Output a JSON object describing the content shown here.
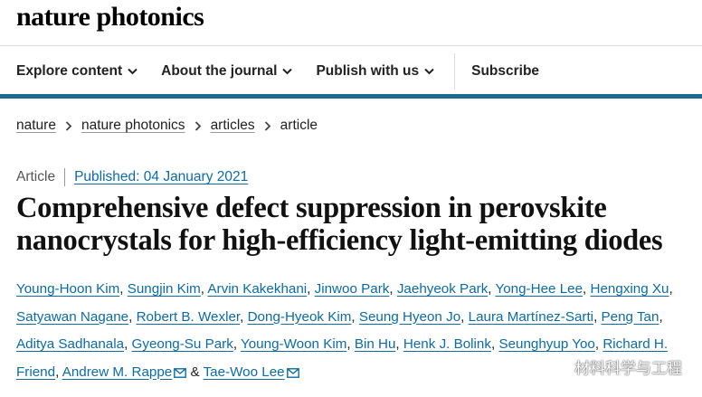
{
  "header": {
    "logo": "nature photonics",
    "nav": [
      "Explore content",
      "About the journal",
      "Publish with us"
    ],
    "subscribe": "Subscribe"
  },
  "breadcrumbs": [
    "nature",
    "nature photonics",
    "articles",
    "article"
  ],
  "article": {
    "type": "Article",
    "published": "Published: 04 January 2021",
    "title": "Comprehensive defect suppression in perovskite nanocrystals for high-efficiency light-emitting diodes",
    "authors": [
      "Young-Hoon Kim",
      "Sungjin Kim",
      "Arvin Kakekhani",
      "Jinwoo Park",
      "Jaehyeok Park",
      "Yong-Hee Lee",
      "Hengxing Xu",
      "Satyawan Nagane",
      "Robert B. Wexler",
      "Dong-Hyeok Kim",
      "Seung Hyeon Jo",
      "Laura Martínez-Sarti",
      "Peng Tan",
      "Aditya Sadhanala",
      "Gyeong-Su Park",
      "Young-Woon Kim",
      "Bin Hu",
      "Henk J. Bolink",
      "Seunghyup Yoo",
      "Richard H. Friend",
      "Andrew M. Rappe",
      "Tae-Woo Lee"
    ],
    "author_separator": ",",
    "author_conjunction": "&"
  },
  "watermark": "材料科学与工程"
}
